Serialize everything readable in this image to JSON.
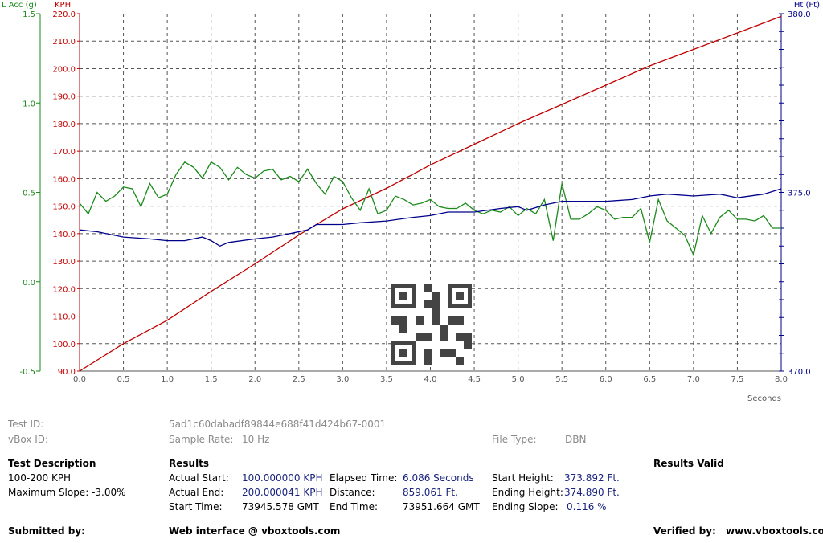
{
  "chart_data": {
    "type": "line",
    "xlabel": "Seconds",
    "xlim": [
      0,
      8
    ],
    "xticks": [
      "0.0",
      "0.5",
      "1.0",
      "1.5",
      "2.0",
      "2.5",
      "3.0",
      "3.5",
      "4.0",
      "4.5",
      "5.0",
      "5.5",
      "6.0",
      "6.5",
      "7.0",
      "7.5",
      "8.0"
    ],
    "axes": {
      "lacc": {
        "label": "L Acc (g)",
        "ylim": [
          -0.5,
          1.5
        ],
        "ticks": [
          "-0.5",
          "0.0",
          "0.5",
          "1.0",
          "1.5"
        ],
        "color": "#1b8a1b"
      },
      "kph": {
        "label": "KPH",
        "ylim": [
          90,
          220
        ],
        "ticks": [
          "90.0",
          "100.0",
          "110.0",
          "120.0",
          "130.0",
          "140.0",
          "150.0",
          "160.0",
          "170.0",
          "180.0",
          "190.0",
          "200.0",
          "210.0",
          "220.0"
        ],
        "color": "#c00000"
      },
      "ht": {
        "label": "Ht (Ft)",
        "ylim": [
          370,
          380
        ],
        "ticks": [
          "370.0",
          "375.0",
          "380.0"
        ],
        "color": "#00008b"
      }
    },
    "series": [
      {
        "name": "KPH",
        "axis": "kph",
        "color": "#c00000",
        "x": [
          0,
          0.5,
          1.0,
          1.5,
          2.0,
          2.5,
          3.0,
          3.5,
          4.0,
          4.5,
          5.0,
          5.5,
          6.0,
          6.5,
          7.0,
          7.5,
          8.0
        ],
        "y": [
          90,
          100,
          108.5,
          119,
          129,
          139.5,
          149,
          156.5,
          165,
          172.5,
          180,
          187,
          194,
          201,
          207,
          213,
          219
        ]
      },
      {
        "name": "L Acc (g)",
        "axis": "lacc",
        "color": "#1b8a1b",
        "x": [
          0,
          0.1,
          0.2,
          0.3,
          0.4,
          0.5,
          0.6,
          0.7,
          0.8,
          0.9,
          1.0,
          1.1,
          1.2,
          1.3,
          1.4,
          1.5,
          1.6,
          1.7,
          1.8,
          1.9,
          2.0,
          2.1,
          2.2,
          2.3,
          2.4,
          2.5,
          2.6,
          2.7,
          2.8,
          2.9,
          3.0,
          3.1,
          3.2,
          3.3,
          3.4,
          3.5,
          3.6,
          3.7,
          3.8,
          3.9,
          4.0,
          4.1,
          4.2,
          4.3,
          4.4,
          4.5,
          4.6,
          4.7,
          4.8,
          4.9,
          5.0,
          5.1,
          5.2,
          5.3,
          5.4,
          5.5,
          5.6,
          5.7,
          5.8,
          5.9,
          6.0,
          6.1,
          6.2,
          6.3,
          6.4,
          6.5,
          6.6,
          6.7,
          6.8,
          6.9,
          7.0,
          7.1,
          7.2,
          7.3,
          7.4,
          7.5,
          7.6,
          7.7,
          7.8,
          7.9,
          8.0
        ],
        "y": [
          0.44,
          0.38,
          0.5,
          0.45,
          0.48,
          0.53,
          0.52,
          0.42,
          0.55,
          0.47,
          0.49,
          0.6,
          0.67,
          0.64,
          0.58,
          0.67,
          0.64,
          0.57,
          0.64,
          0.6,
          0.58,
          0.62,
          0.63,
          0.57,
          0.59,
          0.56,
          0.63,
          0.55,
          0.49,
          0.59,
          0.56,
          0.47,
          0.4,
          0.52,
          0.38,
          0.4,
          0.48,
          0.46,
          0.43,
          0.44,
          0.46,
          0.42,
          0.41,
          0.41,
          0.44,
          0.4,
          0.38,
          0.4,
          0.39,
          0.42,
          0.37,
          0.41,
          0.38,
          0.46,
          0.23,
          0.55,
          0.35,
          0.35,
          0.38,
          0.42,
          0.4,
          0.35,
          0.36,
          0.36,
          0.41,
          0.22,
          0.46,
          0.34,
          0.3,
          0.26,
          0.15,
          0.37,
          0.27,
          0.36,
          0.4,
          0.35,
          0.35,
          0.34,
          0.37,
          0.3,
          0.3
        ]
      },
      {
        "name": "Ht (Ft)",
        "axis": "ht",
        "color": "#00008b",
        "x": [
          0,
          0.2,
          0.5,
          0.8,
          1.0,
          1.2,
          1.4,
          1.5,
          1.6,
          1.7,
          2.0,
          2.2,
          2.4,
          2.6,
          2.7,
          3.0,
          3.2,
          3.5,
          3.8,
          4.0,
          4.2,
          4.5,
          4.8,
          5.0,
          5.1,
          5.3,
          5.5,
          5.8,
          6.0,
          6.3,
          6.5,
          6.7,
          7.0,
          7.3,
          7.5,
          7.8,
          8.0
        ],
        "y": [
          373.95,
          373.9,
          373.75,
          373.7,
          373.65,
          373.65,
          373.75,
          373.65,
          373.5,
          373.6,
          373.7,
          373.75,
          373.85,
          373.95,
          374.1,
          374.1,
          374.15,
          374.2,
          374.3,
          374.35,
          374.45,
          374.45,
          374.55,
          374.6,
          374.5,
          374.65,
          374.75,
          374.75,
          374.75,
          374.8,
          374.9,
          374.95,
          374.9,
          374.95,
          374.85,
          374.95,
          375.1
        ]
      }
    ]
  },
  "info": {
    "test_id_label": "Test ID:",
    "test_id_value": "5ad1c60dabadf89844e688f41d424b67-0001",
    "vbox_id_label": "vBox ID:",
    "sample_rate_label": "Sample Rate:",
    "sample_rate_value": "10 Hz",
    "file_type_label": "File Type:",
    "file_type_value": "DBN",
    "test_desc_title": "Test Description",
    "test_desc_line1": "100-200 KPH",
    "test_desc_line2": "Maximum Slope:  -3.00%",
    "results_title": "Results",
    "results_valid": "Results Valid",
    "actual_start_label": "Actual Start:",
    "actual_start_value": "100.000000 KPH",
    "actual_end_label": "Actual End:",
    "actual_end_value": "200.000041 KPH",
    "start_time_label": "Start Time:",
    "start_time_value": "73945.578 GMT",
    "elapsed_label": "Elapsed Time:",
    "elapsed_value": "6.086 Seconds",
    "distance_label": "Distance:",
    "distance_value": "859.061 Ft.",
    "end_time_label": "End Time:",
    "end_time_value": "73951.664 GMT",
    "start_height_label": "Start Height:",
    "start_height_value": "373.892 Ft.",
    "ending_height_label": "Ending Height:",
    "ending_height_value": "374.890 Ft.",
    "ending_slope_label": "Ending Slope:",
    "ending_slope_value": "0.116 %",
    "submitted_label": "Submitted by:",
    "web_label": "Web interface @ vboxtools.com",
    "verified_label": "Verified by:",
    "verified_value": "www.vboxtools.com"
  }
}
